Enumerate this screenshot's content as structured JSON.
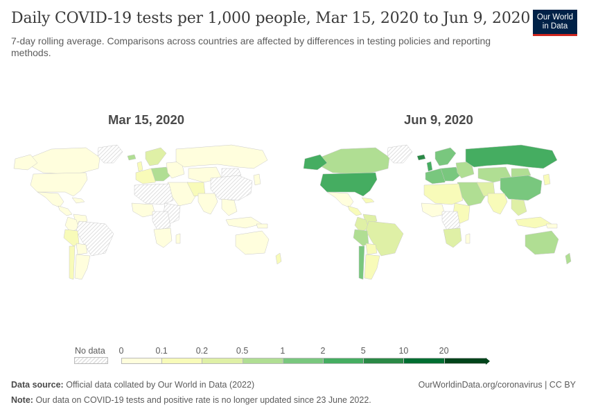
{
  "title": "Daily COVID-19 tests per 1,000 people, Mar 15, 2020 to Jun 9, 2020",
  "subtitle": "7-day rolling average. Comparisons across countries are affected by differences in testing policies and reporting methods.",
  "logo": {
    "line1": "Our World",
    "line2": "in Data"
  },
  "maps": [
    {
      "date_label": "Mar 15, 2020"
    },
    {
      "date_label": "Jun 9, 2020"
    }
  ],
  "legend": {
    "no_data_label": "No data",
    "ticks": [
      "0",
      "0.1",
      "0.2",
      "0.5",
      "1",
      "2",
      "5",
      "10",
      "20"
    ],
    "bin_colors": [
      "#fffedd",
      "#f8fbb9",
      "#dff0a6",
      "#b0de93",
      "#79c77e",
      "#45ad61",
      "#2a8946",
      "#006e32",
      "#00441b"
    ]
  },
  "colors": {
    "no_data": "#e0e0e0",
    "c0": "#fffedd",
    "c1": "#f8fbb9",
    "c2": "#dff0a6",
    "c3": "#b0de93",
    "c4": "#79c77e",
    "c5": "#45ad61",
    "c6": "#2a8946",
    "c7": "#006e32"
  },
  "footer": {
    "source_label": "Data source:",
    "source_text": "Official data collated by Our World in Data (2022)",
    "note_label": "Note:",
    "note_text": "Our data on COVID-19 tests and positive rate is no longer updated since 23 June 2022.",
    "link": "OurWorldinData.org/coronavirus | CC BY"
  }
}
